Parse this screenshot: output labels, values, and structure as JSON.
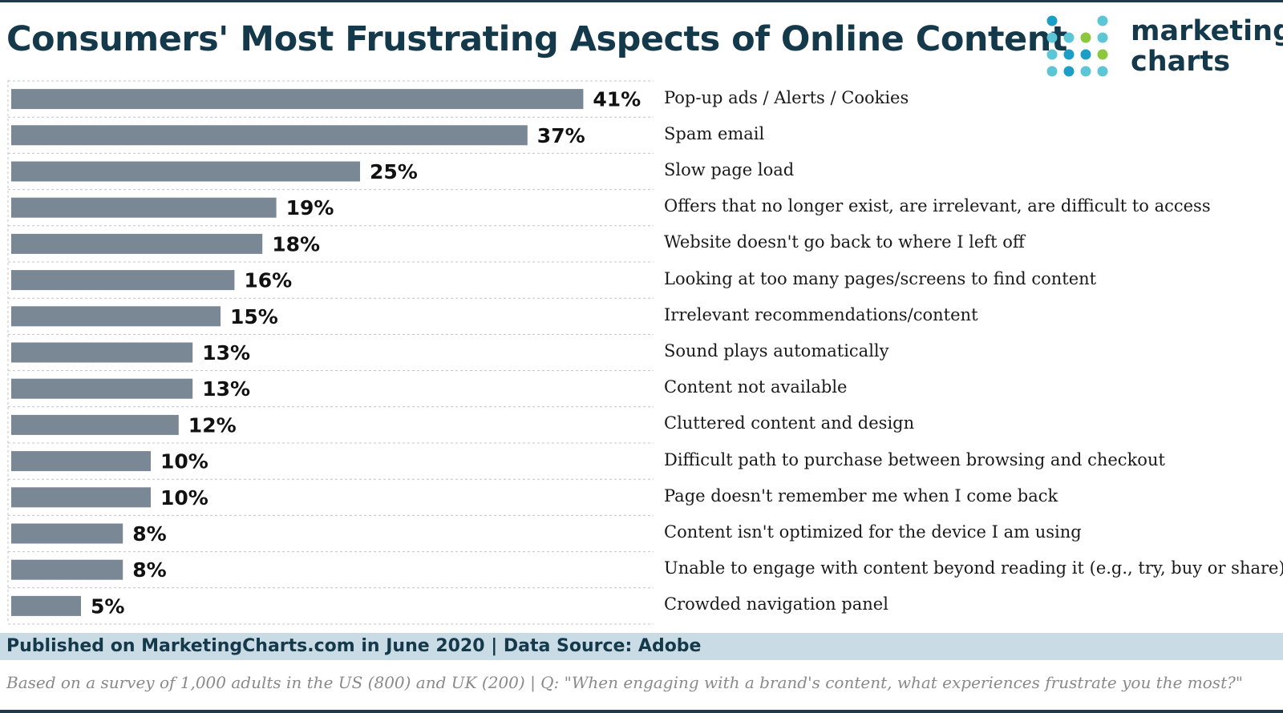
{
  "header": {
    "title": "Consumers' Most Frustrating Aspects of Online Content",
    "logo_line1": "marketing",
    "logo_line2": "charts"
  },
  "colors": {
    "bar": "#7a8794",
    "title": "#14394a",
    "footer_band": "#c9dbe5",
    "logo_dots": [
      "#5cc6d6",
      "#8dc63f",
      "#1b9fc6"
    ]
  },
  "chart_data": {
    "type": "bar",
    "orientation": "horizontal",
    "title": "Consumers' Most Frustrating Aspects of Online Content",
    "xlabel": "",
    "ylabel": "",
    "xlim": [
      0,
      45
    ],
    "grid": false,
    "categories": [
      "Pop-up ads / Alerts / Cookies",
      "Spam email",
      "Slow page load",
      "Offers that no longer exist, are irrelevant, are difficult to access",
      "Website doesn't go back to where I left  off",
      "Looking at too many  pages/screens to find content",
      "Irrelevant recommendations/content",
      "Sound plays automatically",
      "Content not available",
      "Cluttered content and design",
      "Difficult path to purchase between browsing and checkout",
      "Page doesn't remember me when I come back",
      "Content isn't optimized for the device I am using",
      "Unable  to engage with content beyond reading it (e.g., try, buy or share)",
      "Crowded navigation panel"
    ],
    "values": [
      41,
      37,
      25,
      19,
      18,
      16,
      15,
      13,
      13,
      12,
      10,
      10,
      8,
      8,
      5
    ],
    "value_labels": [
      "41%",
      "37%",
      "25%",
      "19%",
      "18%",
      "16%",
      "15%",
      "13%",
      "13%",
      "12%",
      "10%",
      "10%",
      "8%",
      "8%",
      "5%"
    ],
    "value_suffix": "%"
  },
  "footer": {
    "published": "Published on MarketingCharts.com in June 2020 | Data Source: Adobe",
    "note": "Based on a survey of 1,000 adults in the US (800) and UK (200) | Q: \"When engaging with a brand's content, what experiences frustrate you the most?\""
  }
}
